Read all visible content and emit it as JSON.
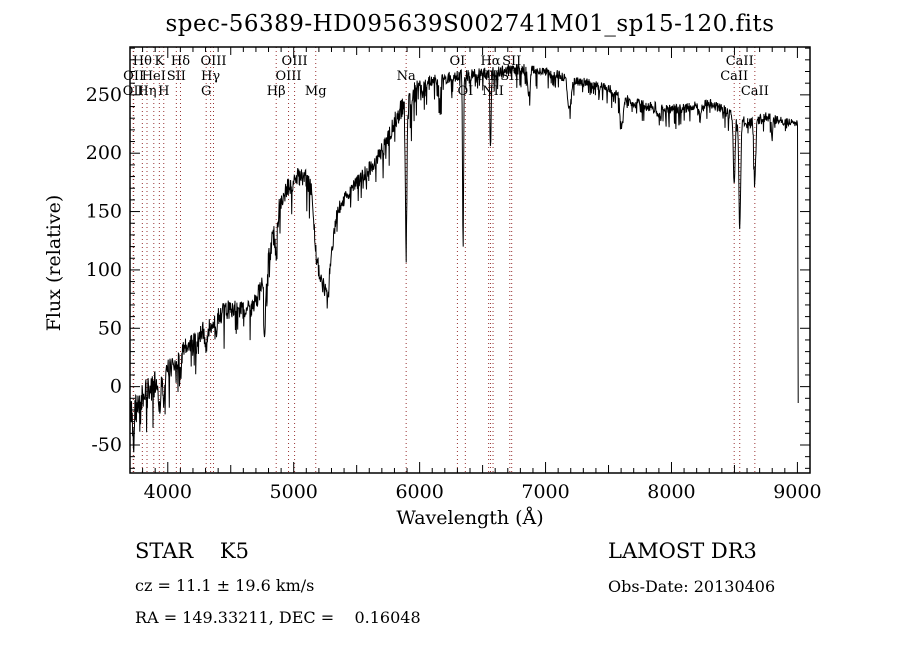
{
  "title": "spec-56389-HD095639S002741M01_sp15-120.fits",
  "chart_data": {
    "type": "line",
    "title": "spec-56389-HD095639S002741M01_sp15-120.fits",
    "xlabel": "Wavelength (Å)",
    "ylabel": "Flux (relative)",
    "xlim": [
      3700,
      9100
    ],
    "ylim": [
      -74,
      291
    ],
    "xticks": [
      4000,
      5000,
      6000,
      7000,
      8000,
      9000
    ],
    "yticks": [
      -50,
      0,
      50,
      100,
      150,
      200,
      250
    ],
    "x_minor_step": 100,
    "y_minor_step": 10,
    "grid": false,
    "legend": "none",
    "series_color": "#000000",
    "marker_color": "#993333",
    "continuum_points": [
      [
        3700,
        -22
      ],
      [
        3760,
        -14
      ],
      [
        3820,
        -6
      ],
      [
        3880,
        0
      ],
      [
        3940,
        6
      ],
      [
        4000,
        14
      ],
      [
        4060,
        22
      ],
      [
        4120,
        30
      ],
      [
        4180,
        36
      ],
      [
        4240,
        44
      ],
      [
        4300,
        52
      ],
      [
        4360,
        58
      ],
      [
        4420,
        62
      ],
      [
        4480,
        66
      ],
      [
        4540,
        67
      ],
      [
        4600,
        64
      ],
      [
        4660,
        68
      ],
      [
        4700,
        74
      ],
      [
        4740,
        84
      ],
      [
        4800,
        108
      ],
      [
        4830,
        125
      ],
      [
        4860,
        142
      ],
      [
        4900,
        160
      ],
      [
        4950,
        170
      ],
      [
        5000,
        176
      ],
      [
        5050,
        181
      ],
      [
        5100,
        178
      ],
      [
        5140,
        168
      ],
      [
        5180,
        112
      ],
      [
        5220,
        88
      ],
      [
        5260,
        86
      ],
      [
        5300,
        114
      ],
      [
        5340,
        146
      ],
      [
        5380,
        158
      ],
      [
        5440,
        166
      ],
      [
        5500,
        175
      ],
      [
        5560,
        182
      ],
      [
        5620,
        188
      ],
      [
        5680,
        198
      ],
      [
        5740,
        210
      ],
      [
        5800,
        226
      ],
      [
        5860,
        240
      ],
      [
        5920,
        248
      ],
      [
        5980,
        254
      ],
      [
        6040,
        258
      ],
      [
        6100,
        262
      ],
      [
        6200,
        264
      ],
      [
        6300,
        266
      ],
      [
        6400,
        267
      ],
      [
        6500,
        268
      ],
      [
        6600,
        270
      ],
      [
        6700,
        271
      ],
      [
        6800,
        272
      ],
      [
        6900,
        272
      ],
      [
        7000,
        270
      ],
      [
        7100,
        267
      ],
      [
        7200,
        263
      ],
      [
        7300,
        261
      ],
      [
        7400,
        258
      ],
      [
        7500,
        255
      ],
      [
        7600,
        248
      ],
      [
        7700,
        243
      ],
      [
        7800,
        240
      ],
      [
        7900,
        239
      ],
      [
        8000,
        238
      ],
      [
        8100,
        238
      ],
      [
        8200,
        241
      ],
      [
        8300,
        243
      ],
      [
        8400,
        238
      ],
      [
        8450,
        234
      ],
      [
        8550,
        228
      ],
      [
        8650,
        226
      ],
      [
        8750,
        231
      ],
      [
        8850,
        228
      ],
      [
        8950,
        226
      ],
      [
        9003,
        226
      ]
    ],
    "absorption_features": [
      [
        3726,
        22,
        6
      ],
      [
        3934,
        22,
        9
      ],
      [
        3969,
        22,
        9
      ],
      [
        4101,
        14,
        8
      ],
      [
        4227,
        10,
        6
      ],
      [
        4305,
        16,
        12
      ],
      [
        4340,
        10,
        7
      ],
      [
        4383,
        12,
        6
      ],
      [
        4770,
        52,
        7
      ],
      [
        4861,
        26,
        8
      ],
      [
        5270,
        12,
        15
      ],
      [
        5893,
        132,
        6
      ],
      [
        6160,
        20,
        8
      ],
      [
        6345,
        148,
        4
      ],
      [
        6563,
        66,
        5
      ],
      [
        6867,
        22,
        10
      ],
      [
        7190,
        26,
        14
      ],
      [
        7605,
        26,
        12
      ],
      [
        7900,
        10,
        10
      ],
      [
        8230,
        12,
        8
      ],
      [
        8498,
        58,
        7
      ],
      [
        8542,
        94,
        7
      ],
      [
        8662,
        52,
        7
      ],
      [
        8798,
        18,
        5
      ]
    ],
    "noise_profile": [
      [
        3700,
        13
      ],
      [
        4000,
        10
      ],
      [
        4400,
        8
      ],
      [
        4800,
        9
      ],
      [
        5100,
        8
      ],
      [
        5400,
        6
      ],
      [
        5700,
        7
      ],
      [
        5950,
        10
      ],
      [
        6100,
        6
      ],
      [
        6400,
        5
      ],
      [
        6700,
        5
      ],
      [
        7000,
        4
      ],
      [
        7400,
        4
      ],
      [
        7800,
        5
      ],
      [
        8200,
        4
      ],
      [
        8600,
        5
      ],
      [
        9000,
        3
      ]
    ],
    "end_artifact": {
      "wavelength": 9006,
      "drop_to": -14
    },
    "spectral_lines": [
      {
        "label": "OII",
        "wavelength": 3726,
        "row": 3
      },
      {
        "label": "OII",
        "wavelength": 3729,
        "row": 2
      },
      {
        "label": "Hθ",
        "wavelength": 3798,
        "row": 1
      },
      {
        "label": "Hη",
        "wavelength": 3835,
        "row": 3
      },
      {
        "label": "HeI",
        "wavelength": 3889,
        "row": 2
      },
      {
        "label": "K",
        "wavelength": 3933,
        "row": 1
      },
      {
        "label": "H",
        "wavelength": 3968,
        "row": 3
      },
      {
        "label": "SII",
        "wavelength": 4068,
        "row": 2
      },
      {
        "label": "Hδ",
        "wavelength": 4101,
        "row": 1
      },
      {
        "label": "G",
        "wavelength": 4305,
        "row": 3
      },
      {
        "label": "Hγ",
        "wavelength": 4340,
        "row": 2
      },
      {
        "label": "OIII",
        "wavelength": 4363,
        "row": 1
      },
      {
        "label": "Hβ",
        "wavelength": 4861,
        "row": 3
      },
      {
        "label": "OIII",
        "wavelength": 4959,
        "row": 2
      },
      {
        "label": "OIII",
        "wavelength": 5007,
        "row": 1
      },
      {
        "label": "Mg",
        "wavelength": 5175,
        "row": 3
      },
      {
        "label": "Na",
        "wavelength": 5893,
        "row": 2
      },
      {
        "label": "OI",
        "wavelength": 6300,
        "row": 1
      },
      {
        "label": "OI",
        "wavelength": 6363,
        "row": 3
      },
      {
        "label": "NII",
        "wavelength": 6548,
        "row": 2
      },
      {
        "label": "Hα",
        "wavelength": 6563,
        "row": 1
      },
      {
        "label": "NII",
        "wavelength": 6583,
        "row": 3
      },
      {
        "label": "SII",
        "wavelength": 6716,
        "row": 2
      },
      {
        "label": "SII",
        "wavelength": 6731,
        "row": 1
      },
      {
        "label": "CaII",
        "wavelength": 8498,
        "row": 2
      },
      {
        "label": "CaII",
        "wavelength": 8542,
        "row": 1
      },
      {
        "label": "CaII",
        "wavelength": 8662,
        "row": 3
      }
    ]
  },
  "annotations": {
    "class_line": "STAR    K5",
    "survey": "LAMOST DR3",
    "cz_line": "cz = 11.1 ± 19.6 km/s",
    "obs_date": "Obs-Date: 20130406",
    "radec_line": "RA = 149.33211, DEC =    0.16048"
  }
}
